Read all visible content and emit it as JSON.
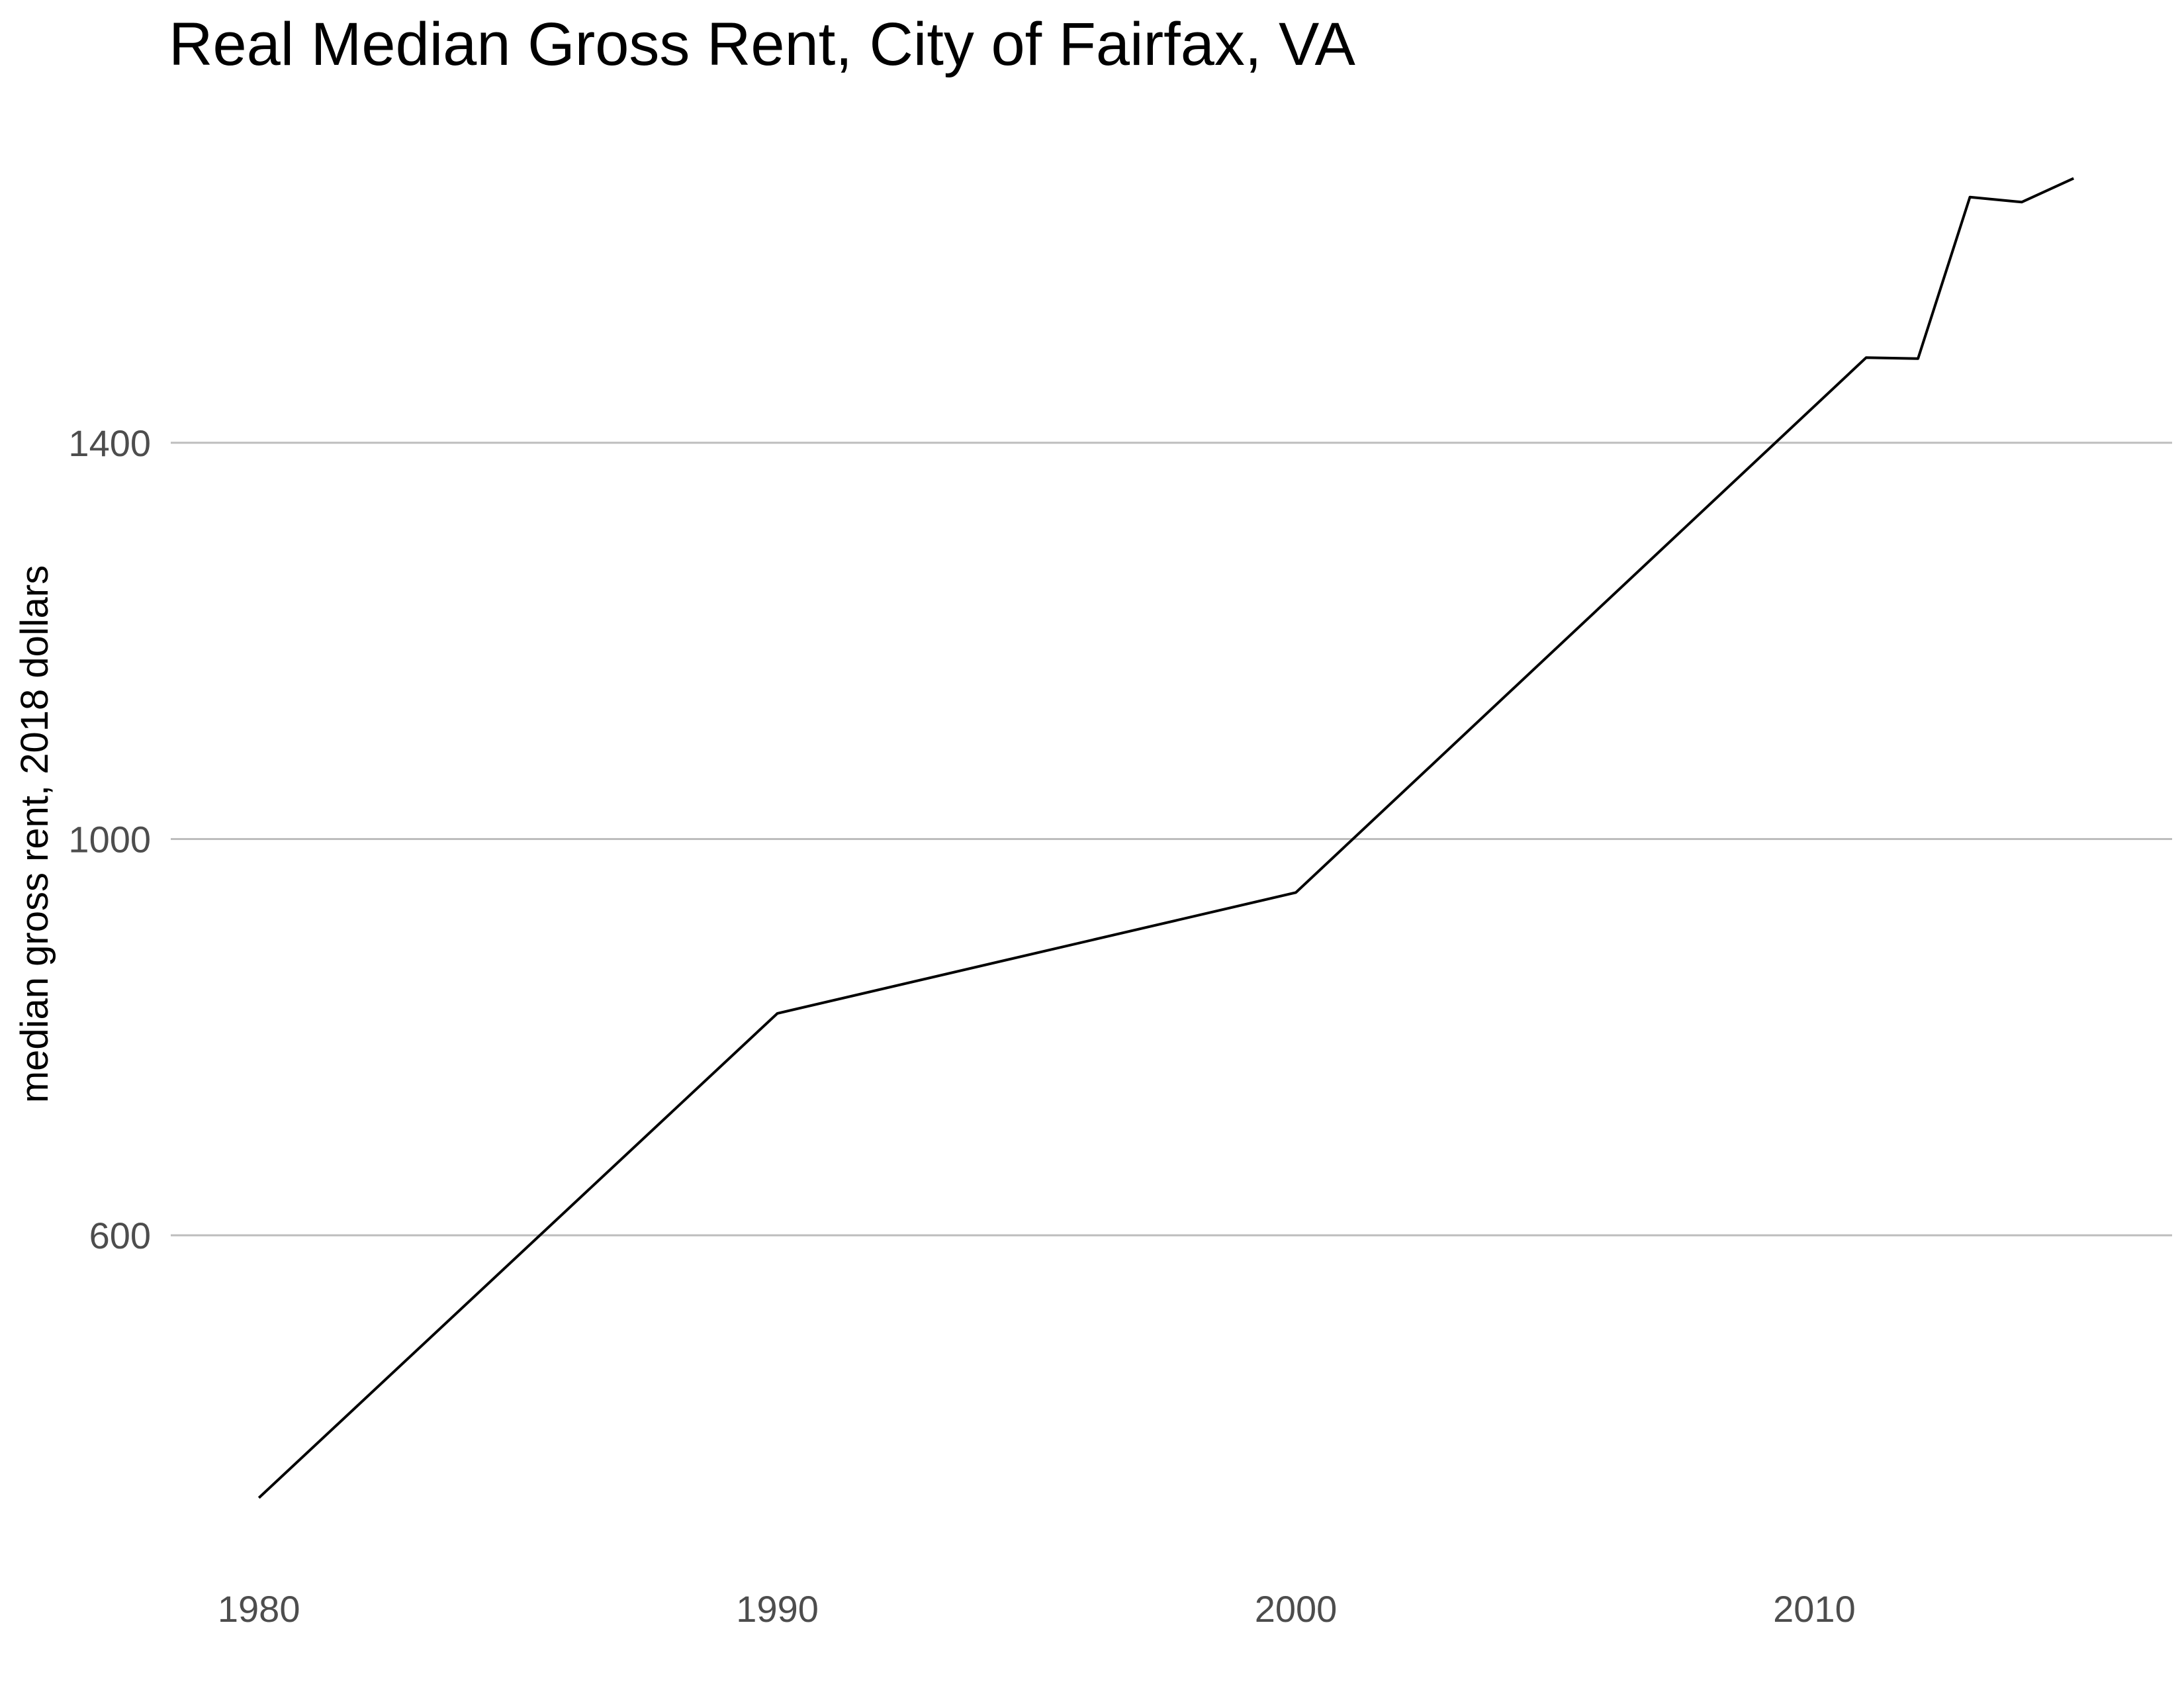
{
  "chart_data": {
    "type": "line",
    "title": "Real Median Gross Rent, City of Fairfax, VA",
    "xlabel": "",
    "ylabel": "median gross rent, 2018 dollars",
    "x": [
      1980,
      1990,
      2000,
      2011,
      2012,
      2013,
      2014,
      2015
    ],
    "series": [
      {
        "values": [
          335,
          824,
          946,
          1486,
          1485,
          1648,
          1643,
          1667
        ]
      }
    ],
    "xlim": [
      1978.3,
      2016.9
    ],
    "ylim": [
      290,
      1700
    ],
    "x_ticks": [
      1980,
      1990,
      2000,
      2010
    ],
    "x_tick_labels": [
      "1980",
      "1990",
      "2000",
      "2010"
    ],
    "y_ticks": [
      600,
      1000,
      1400
    ],
    "y_tick_labels": [
      "600",
      "1000",
      "1400"
    ],
    "grid": "horizontal major gridlines only",
    "legend": "none",
    "colors": {
      "line": "#000000",
      "grid": "#bdbdbd",
      "tick_text": "#4d4d4d",
      "background": "#ffffff"
    }
  }
}
